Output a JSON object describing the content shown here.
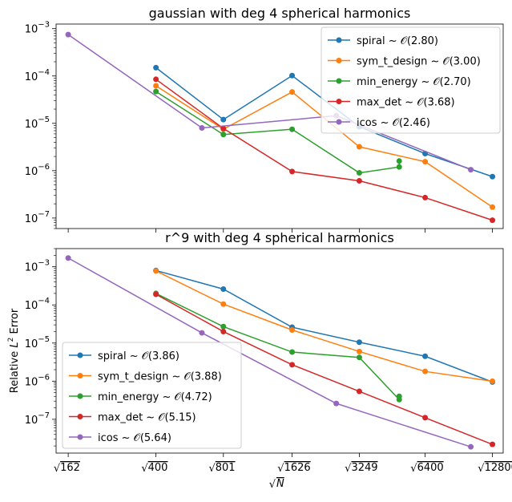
{
  "chart_data": [
    {
      "type": "line",
      "title": "gaussian with deg 4 spherical harmonics",
      "xlabel": "",
      "ylabel": "",
      "yscale": "log",
      "ylim": [
        6e-08,
        0.00125
      ],
      "x_ticks": [
        "√162",
        "√400",
        "√801",
        "√1626",
        "√3249",
        "√6400",
        "√12800"
      ],
      "y_ticks": [
        "10^-3",
        "10^-4",
        "10^-5",
        "10^-6",
        "10^-7"
      ],
      "grid": false,
      "legend_position": "top-right",
      "series": [
        {
          "name": "spiral ~ 𝒪(2.80)",
          "color": "#1f77b4",
          "x": [
            400,
            801,
            1626,
            3249,
            6400,
            12800
          ],
          "y": [
            0.00015,
            1.2e-05,
            0.000102,
            8.5e-06,
            2.3e-06,
            7.5e-07
          ]
        },
        {
          "name": "sym_t_design ~ 𝒪(3.00)",
          "color": "#ff7f0e",
          "x": [
            400,
            801,
            1626,
            3249,
            6400,
            12800
          ],
          "y": [
            6.2e-05,
            7.5e-06,
            4.6e-05,
            3.2e-06,
            1.55e-06,
            1.7e-07
          ]
        },
        {
          "name": "min_energy ~ 𝒪(2.70)",
          "color": "#2ca02c",
          "x": [
            400,
            801,
            1626,
            3249,
            4900,
            4900
          ],
          "y": [
            4.7e-05,
            5.8e-06,
            7.5e-06,
            9e-07,
            1.2e-06,
            1.6e-06
          ]
        },
        {
          "name": "max_det ~ 𝒪(3.68)",
          "color": "#d62728",
          "x": [
            400,
            801,
            1626,
            3249,
            6400,
            12800
          ],
          "y": [
            8.5e-05,
            7.8e-06,
            9.6e-07,
            6.1e-07,
            2.7e-07,
            9e-08
          ]
        },
        {
          "name": "icos ~ 𝒪(2.46)",
          "color": "#9467bd",
          "x": [
            162,
            642,
            2562,
            10242
          ],
          "y": [
            0.00075,
            8e-06,
            1.45e-05,
            1.05e-06
          ]
        }
      ]
    },
    {
      "type": "line",
      "title": "r^9 with deg 4 spherical harmonics",
      "xlabel": "√N",
      "ylabel": "Relative L² Error",
      "yscale": "log",
      "ylim": [
        1.3e-08,
        0.003
      ],
      "x_ticks": [
        "√162",
        "√400",
        "√801",
        "√1626",
        "√3249",
        "√6400",
        "√12800"
      ],
      "y_ticks": [
        "10^-3",
        "10^-4",
        "10^-5",
        "10^-6",
        "10^-7"
      ],
      "grid": false,
      "legend_position": "bottom-left",
      "series": [
        {
          "name": "spiral ~ 𝒪(3.86)",
          "color": "#1f77b4",
          "x": [
            400,
            801,
            1626,
            3249,
            6400,
            12800
          ],
          "y": [
            0.0008,
            0.00026,
            2.6e-05,
            1.05e-05,
            4.5e-06,
            9.5e-07
          ]
        },
        {
          "name": "sym_t_design ~ 𝒪(3.88)",
          "color": "#ff7f0e",
          "x": [
            400,
            801,
            1626,
            3249,
            6400,
            12800
          ],
          "y": [
            0.00078,
            0.000105,
            2.2e-05,
            6e-06,
            1.8e-06,
            1e-06
          ]
        },
        {
          "name": "min_energy ~ 𝒪(4.72)",
          "color": "#2ca02c",
          "x": [
            400,
            801,
            1626,
            3249,
            4900,
            4900
          ],
          "y": [
            0.0002,
            2.7e-05,
            5.8e-06,
            4.2e-06,
            3.3e-07,
            4e-07
          ]
        },
        {
          "name": "max_det ~ 𝒪(5.15)",
          "color": "#d62728",
          "x": [
            400,
            801,
            1626,
            3249,
            6400,
            12800
          ],
          "y": [
            0.00019,
            2e-05,
            2.7e-06,
            5.4e-07,
            1.1e-07,
            2.2e-08
          ]
        },
        {
          "name": "icos ~ 𝒪(5.64)",
          "color": "#9467bd",
          "x": [
            162,
            642,
            2562,
            10242
          ],
          "y": [
            0.0017,
            1.85e-05,
            2.6e-07,
            1.9e-08
          ]
        }
      ]
    }
  ]
}
